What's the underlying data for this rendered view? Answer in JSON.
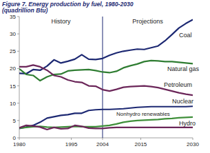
{
  "chart_data": {
    "type": "line",
    "title": "Figure 7. Energy production by fuel, 1980-2030",
    "y_label": "(quadrillion Btu)",
    "annotations": {
      "divider": 2004,
      "left": "History",
      "right": "Projections"
    },
    "x": [
      1980,
      1982,
      1984,
      1986,
      1988,
      1990,
      1992,
      1994,
      1996,
      1998,
      2000,
      2002,
      2004,
      2006,
      2008,
      2010,
      2012,
      2014,
      2016,
      2018,
      2020,
      2022,
      2024,
      2026,
      2028,
      2030
    ],
    "xlim": [
      1980,
      2030
    ],
    "xticks": [
      1980,
      1995,
      2004,
      2015,
      2030
    ],
    "ylim": [
      0,
      35
    ],
    "yticks": [
      0,
      5,
      10,
      15,
      20,
      25,
      30,
      35
    ],
    "grid": false,
    "series": [
      {
        "name": "Coal",
        "color": "#1c2872",
        "line_style": "solid",
        "values": [
          18.6,
          18.5,
          19.7,
          19.5,
          20.7,
          22.5,
          21.6,
          22.1,
          22.7,
          24.0,
          22.7,
          22.6,
          22.9,
          23.8,
          24.5,
          25.0,
          25.3,
          25.6,
          25.5,
          26.0,
          26.5,
          28.0,
          29.8,
          31.7,
          33.0,
          34.1
        ]
      },
      {
        "name": "Natural gas",
        "color": "#2f7d32",
        "line_style": "solid",
        "values": [
          19.9,
          18.3,
          18.0,
          16.5,
          17.6,
          18.3,
          18.4,
          19.3,
          19.5,
          19.6,
          19.7,
          19.4,
          19.0,
          18.8,
          19.2,
          20.2,
          20.8,
          21.3,
          22.0,
          22.3,
          22.2,
          22.0,
          22.0,
          21.8,
          21.6,
          21.4
        ]
      },
      {
        "name": "Petroleum",
        "color": "#6b2659",
        "line_style": "solid",
        "values": [
          20.5,
          20.5,
          21.0,
          20.5,
          19.5,
          18.0,
          17.6,
          16.7,
          16.2,
          16.0,
          15.0,
          14.9,
          13.9,
          13.5,
          14.0,
          14.6,
          14.8,
          14.9,
          15.0,
          14.8,
          14.5,
          14.0,
          13.5,
          13.0,
          12.6,
          12.3
        ]
      },
      {
        "name": "Nuclear",
        "color": "#1c2872",
        "line_style": "solid",
        "values": [
          2.7,
          3.1,
          3.6,
          4.5,
          5.7,
          6.1,
          6.5,
          6.7,
          7.1,
          7.1,
          7.9,
          8.1,
          8.2,
          8.2,
          8.3,
          8.4,
          8.6,
          8.8,
          8.9,
          9.0,
          9.0,
          9.0,
          9.0,
          9.0,
          9.0,
          9.1
        ]
      },
      {
        "name": "Nonhydro renewables",
        "color": "#3f8f3a",
        "line_style": "solid",
        "values": [
          2.8,
          3.0,
          3.2,
          3.3,
          3.1,
          3.0,
          3.1,
          3.2,
          3.3,
          3.2,
          3.2,
          3.2,
          3.4,
          3.6,
          4.0,
          4.5,
          4.8,
          5.0,
          5.1,
          5.2,
          5.3,
          5.5,
          5.6,
          5.8,
          5.9,
          6.0
        ]
      },
      {
        "name": "Hydro",
        "color": "#6b2659",
        "line_style": "solid",
        "values": [
          2.9,
          3.6,
          3.4,
          3.1,
          2.4,
          3.0,
          2.6,
          2.7,
          3.6,
          3.3,
          2.8,
          2.7,
          2.7,
          2.9,
          3.0,
          3.0,
          3.0,
          3.0,
          3.0,
          3.0,
          3.0,
          3.0,
          3.0,
          3.0,
          3.0,
          3.0
        ]
      }
    ]
  }
}
